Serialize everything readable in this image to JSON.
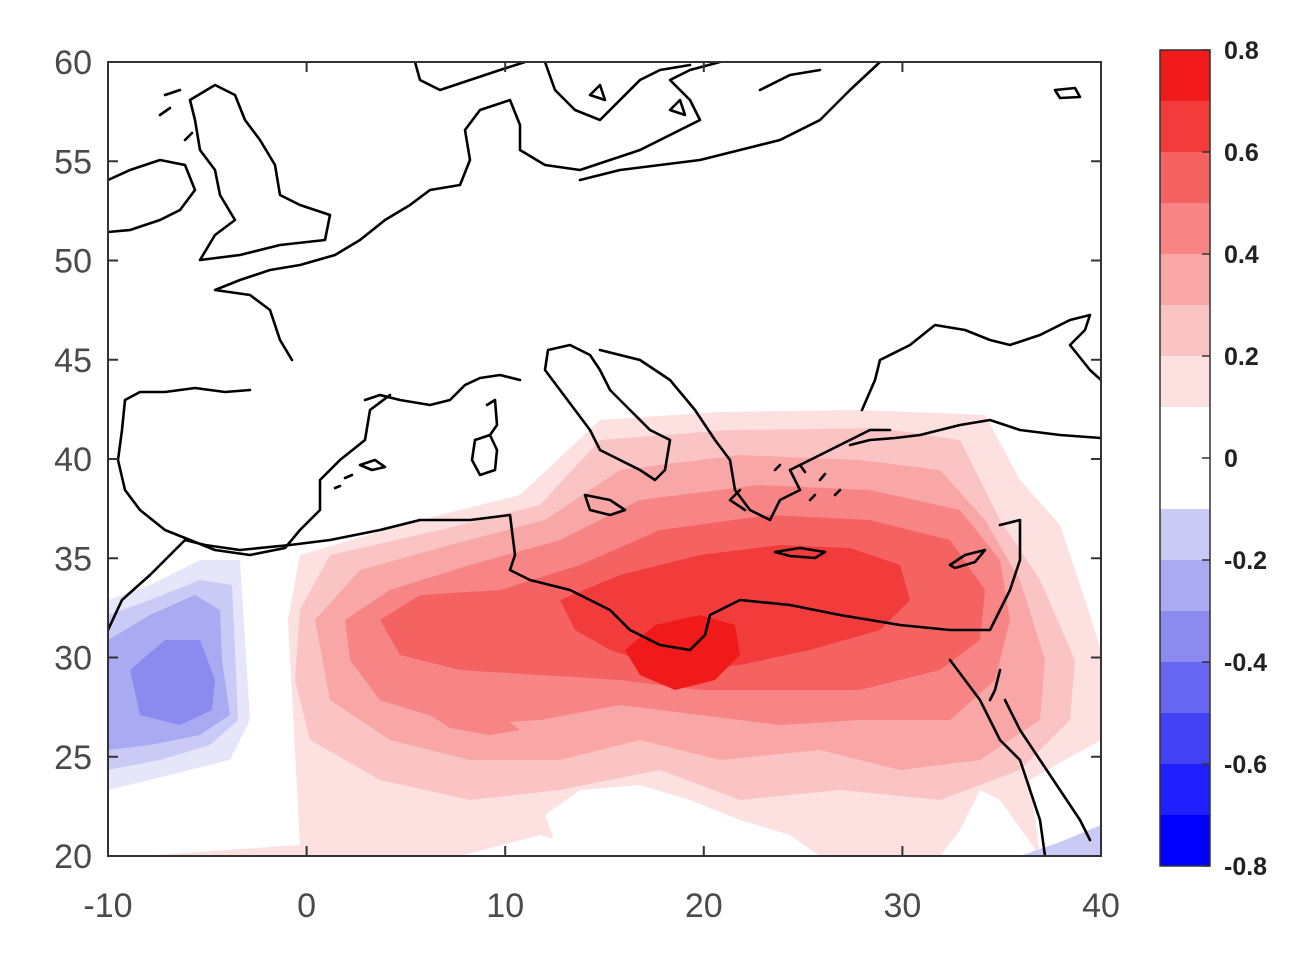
{
  "chart_data": {
    "type": "heatmap",
    "title": "",
    "xlabel": "",
    "ylabel": "",
    "xlim": [
      -10,
      40
    ],
    "ylim": [
      20,
      60
    ],
    "x_ticks": [
      "-10",
      "0",
      "10",
      "20",
      "30",
      "40"
    ],
    "y_ticks": [
      "20",
      "25",
      "30",
      "35",
      "40",
      "45",
      "50",
      "55",
      "60"
    ],
    "grid": false,
    "colorbar": {
      "range": [
        -0.8,
        0.8
      ],
      "placement": "right",
      "levels": [
        -0.8,
        -0.7,
        -0.6,
        -0.5,
        -0.4,
        -0.3,
        -0.2,
        -0.1,
        0.1,
        0.2,
        0.3,
        0.4,
        0.5,
        0.6,
        0.7,
        0.8
      ],
      "labels": [
        "0.8",
        "0.6",
        "0.4",
        "0.2",
        "0",
        "-0.2",
        "-0.4",
        "-0.6",
        "-0.8"
      ],
      "colors": [
        "#0000ff",
        "#2020ff",
        "#4242f4",
        "#6666f0",
        "#8a8aef",
        "#aaaaf2",
        "#cacaf7",
        "#e6e6fb",
        "#ffffff",
        "#fde0e0",
        "#fbc4c4",
        "#f9a6a6",
        "#f78585",
        "#f56262",
        "#f23c3c",
        "#f01a1a",
        "#ff0000"
      ]
    },
    "fields": [
      {
        "name": "east-mediterranean-positive-anomaly",
        "lon": [
          -2,
          38
        ],
        "lat": [
          22,
          42
        ],
        "peak": 0.75,
        "peak_at": [
          19,
          30
        ]
      },
      {
        "name": "eastern-atlantic-negative-anomaly",
        "lon": [
          -10,
          -3
        ],
        "lat": [
          22,
          35
        ],
        "peak": -0.45,
        "peak_at": [
          -7,
          29
        ]
      }
    ],
    "basemap": "coastlines"
  }
}
